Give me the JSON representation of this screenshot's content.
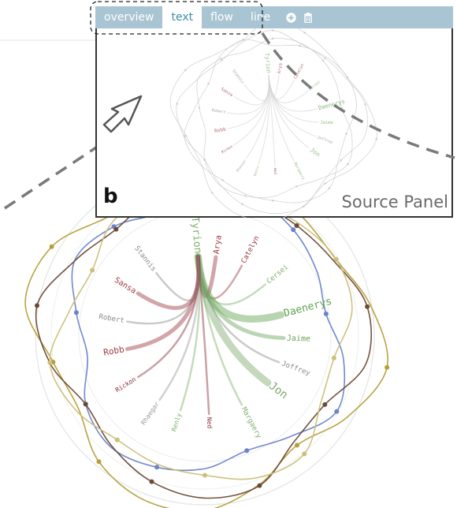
{
  "tabs": [
    {
      "label": "overview",
      "active": false
    },
    {
      "label": "text",
      "active": true
    },
    {
      "label": "flow",
      "active": false
    },
    {
      "label": "line",
      "active": false
    }
  ],
  "toolbar": {
    "add_icon": "plus-circle-icon",
    "delete_icon": "trash-icon"
  },
  "panel": {
    "letter": "b",
    "title": "Source Panel"
  },
  "characters": [
    {
      "name": "Tyrion",
      "color": "#7fb06d",
      "angle": -95,
      "size": 13
    },
    {
      "name": "Arya",
      "color": "#9b3840",
      "angle": -82,
      "size": 10
    },
    {
      "name": "Catelyn",
      "color": "#9b3840",
      "angle": -62,
      "size": 9
    },
    {
      "name": "Cersei",
      "color": "#7fb06d",
      "angle": -40,
      "size": 9
    },
    {
      "name": "Daenerys",
      "color": "#5fa24d",
      "angle": -15,
      "size": 13
    },
    {
      "name": "Jaime",
      "color": "#6aa55a",
      "angle": 2,
      "size": 10
    },
    {
      "name": "Joffrey",
      "color": "#8a8a8a",
      "angle": 20,
      "size": 9
    },
    {
      "name": "Jon",
      "color": "#7aa86a",
      "angle": 37,
      "size": 14
    },
    {
      "name": "Margaery",
      "color": "#7fb06d",
      "angle": 62,
      "size": 9
    },
    {
      "name": "Ned",
      "color": "#8a2e3a",
      "angle": 87,
      "size": 8
    },
    {
      "name": "Renly",
      "color": "#7fb06d",
      "angle": 108,
      "size": 8
    },
    {
      "name": "Rhaegar",
      "color": "#9a9a9a",
      "angle": 125,
      "size": 8
    },
    {
      "name": "Rickon",
      "color": "#8a2e3a",
      "angle": 148,
      "size": 8
    },
    {
      "name": "Robb",
      "color": "#9b3840",
      "angle": 170,
      "size": 11
    },
    {
      "name": "Robert",
      "color": "#8a8a8a",
      "angle": 190,
      "size": 9
    },
    {
      "name": "Sansa",
      "color": "#9b3840",
      "angle": 212,
      "size": 10
    },
    {
      "name": "Stannis",
      "color": "#8a8a8a",
      "angle": 232,
      "size": 9
    }
  ],
  "series_colors": {
    "blue": "#6b84c8",
    "gold": "#b59f3a",
    "brown": "#6b4a35",
    "tan": "#cbbf7a"
  }
}
